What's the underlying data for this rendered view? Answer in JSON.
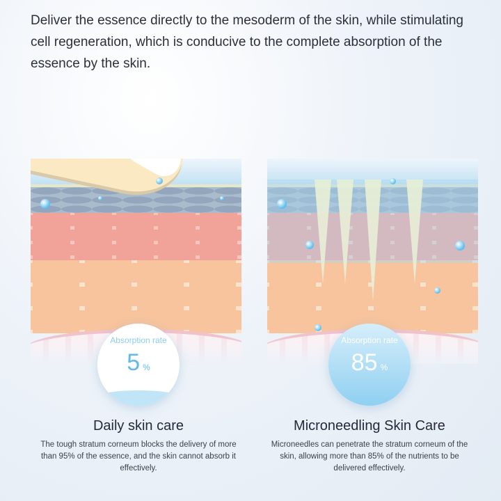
{
  "headline": "Deliver the essence directly to the mesoderm of the skin, while stimulating cell regeneration, which is conducive to the complete absorption of the essence by the skin.",
  "left": {
    "absorption_label": "Absorption rate",
    "absorption_value": "5",
    "unit": "%",
    "title": "Daily skin care",
    "description": "The tough stratum corneum blocks the delivery of more than 95% of the essence, and the skin cannot absorb it effectively."
  },
  "right": {
    "absorption_label": "Absorption rate",
    "absorption_value": "85",
    "unit": "%",
    "title": "Microneedling Skin Care",
    "description": "Microneedles can penetrate the stratum corneum of the skin, allowing more than 85% of the nutrients to be delivered effectively."
  },
  "colors": {
    "accent": "#62b9ea",
    "title": "#25293a"
  }
}
